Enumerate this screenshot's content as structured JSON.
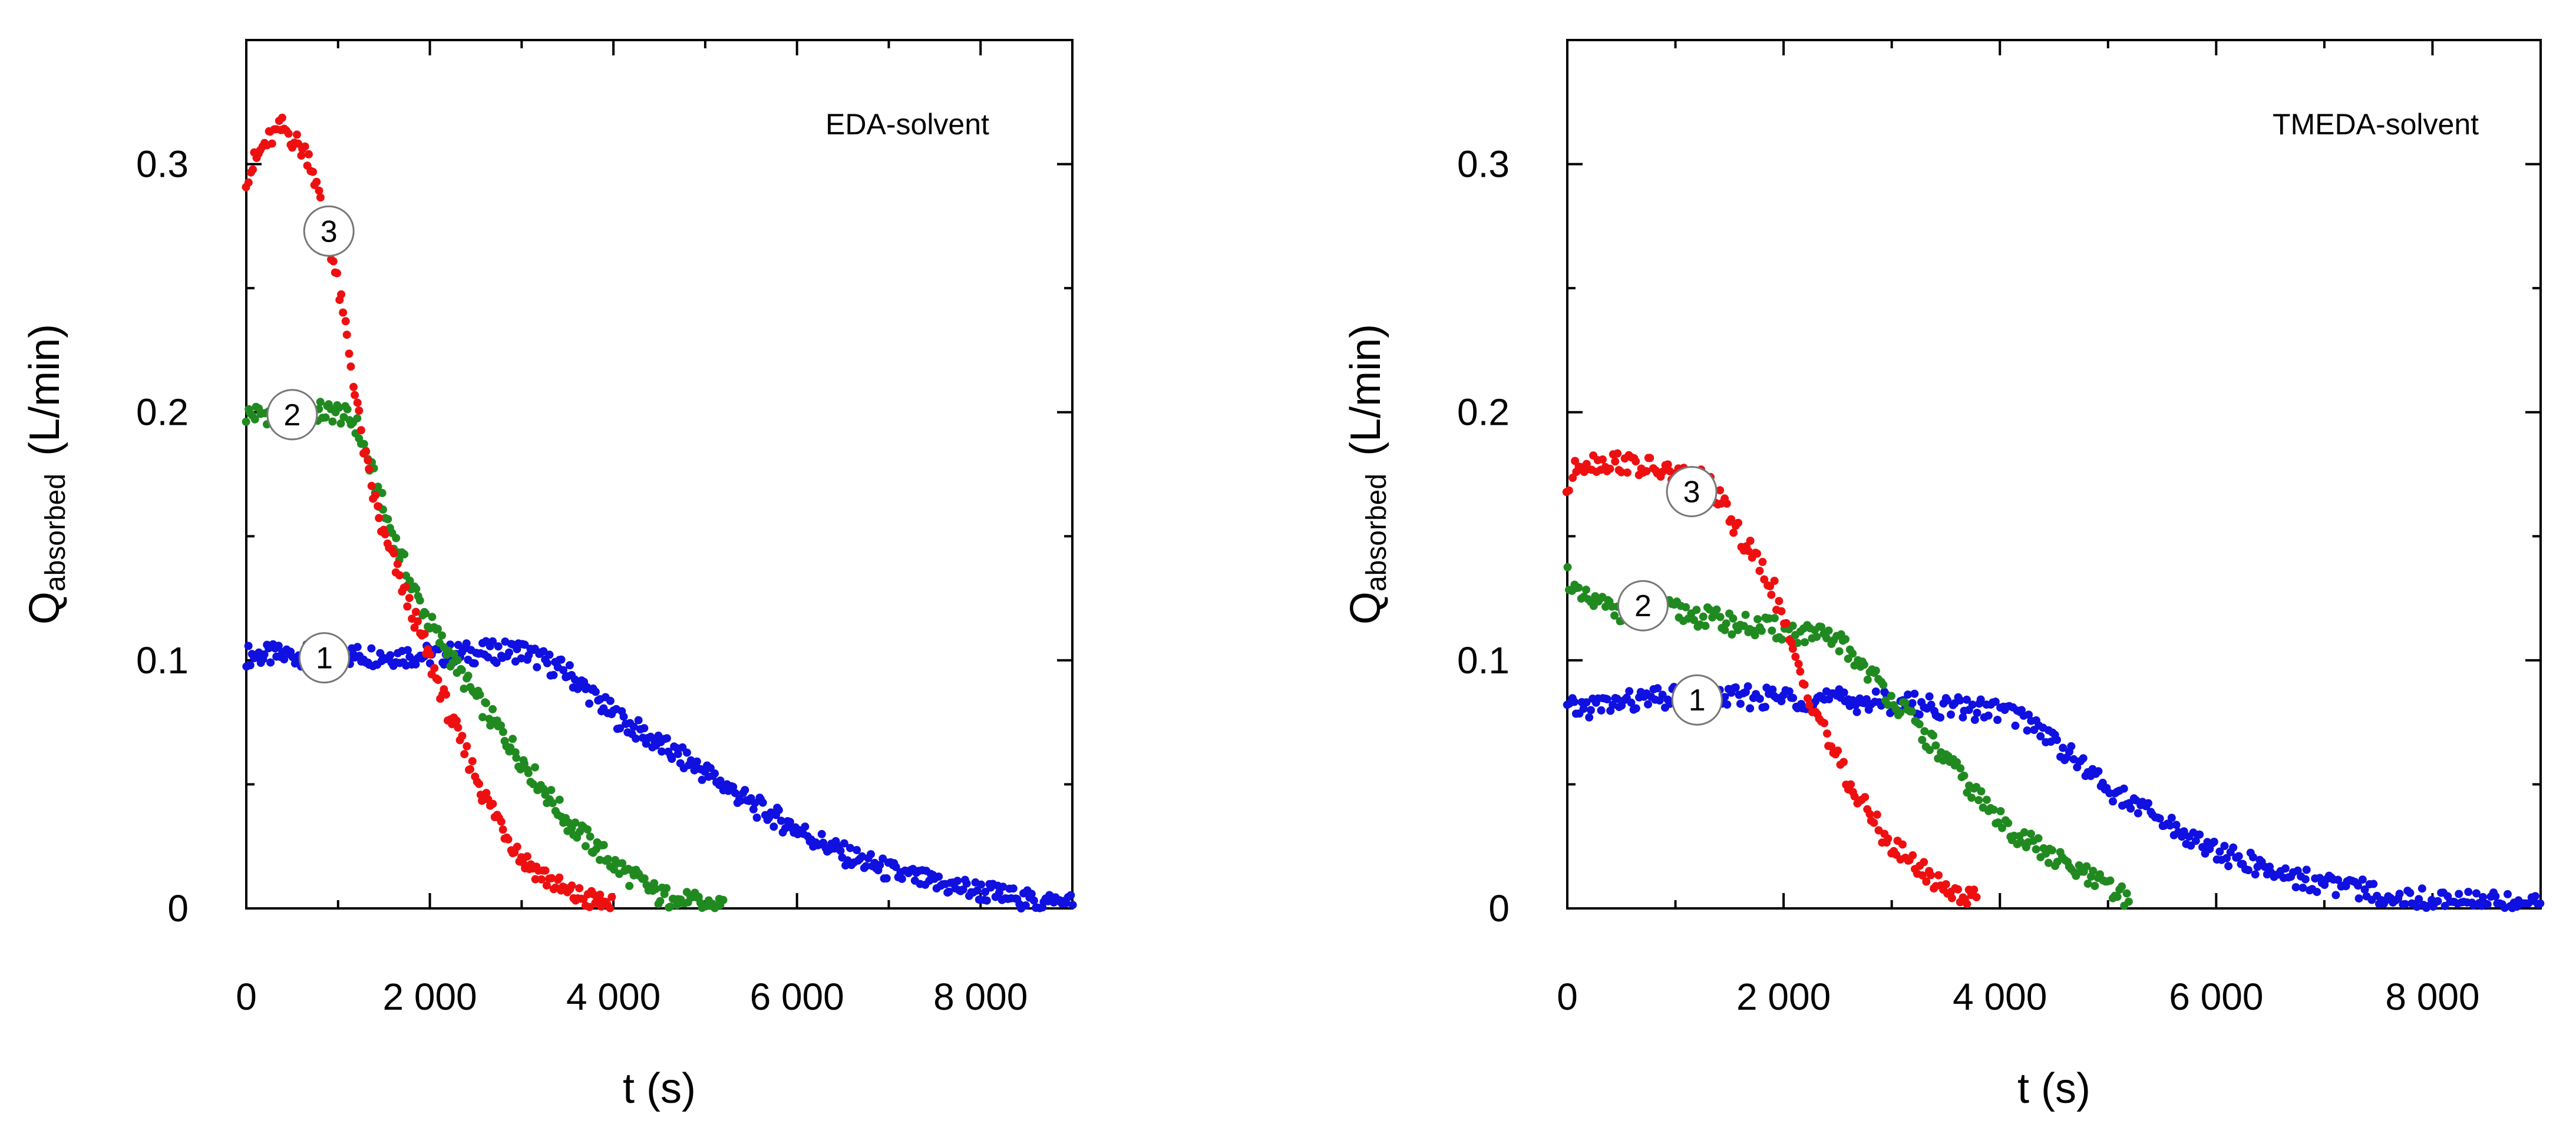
{
  "chart_data": [
    {
      "type": "scatter",
      "title": "EDA-solvent",
      "xlabel": "t  (s)",
      "ylabel_main": "Q",
      "ylabel_sub": "absorbed",
      "ylabel_unit": "(L/min)",
      "xlim": [
        0,
        9000
      ],
      "ylim": [
        0,
        0.35
      ],
      "xticks": [
        0,
        2000,
        4000,
        6000,
        8000
      ],
      "xtick_labels": [
        "0",
        "2 000",
        "4 000",
        "6 000",
        "8 000"
      ],
      "yticks": [
        0,
        0.1,
        0.2,
        0.3
      ],
      "ytick_labels": [
        "0",
        "0.1",
        "0.2",
        "0.3"
      ],
      "series": [
        {
          "name": "1",
          "color": "#1010e0",
          "label_pos": [
            850,
            0.101
          ],
          "x": [
            0,
            1000,
            2000,
            3000,
            3500,
            4000,
            4500,
            5000,
            5500,
            6000,
            6500,
            7000,
            7500,
            8000,
            8500,
            9000
          ],
          "y": [
            0.102,
            0.102,
            0.102,
            0.104,
            0.095,
            0.078,
            0.066,
            0.055,
            0.042,
            0.032,
            0.022,
            0.015,
            0.01,
            0.007,
            0.003,
            0.002
          ]
        },
        {
          "name": "2",
          "color": "#208a20",
          "label_pos": [
            500,
            0.199
          ],
          "x": [
            0,
            500,
            1000,
            1200,
            1500,
            1800,
            2000,
            2500,
            3000,
            3500,
            4000,
            4500,
            5000,
            5200
          ],
          "y": [
            0.199,
            0.2,
            0.2,
            0.195,
            0.16,
            0.13,
            0.115,
            0.085,
            0.06,
            0.035,
            0.018,
            0.005,
            0.001,
            0.001
          ]
        },
        {
          "name": "3",
          "color": "#ee1010",
          "label_pos": [
            900,
            0.273
          ],
          "x": [
            0,
            200,
            400,
            700,
            900,
            1100,
            1300,
            1500,
            1800,
            2000,
            2300,
            2600,
            3000,
            3500,
            4000
          ],
          "y": [
            0.295,
            0.308,
            0.315,
            0.302,
            0.27,
            0.23,
            0.18,
            0.15,
            0.12,
            0.1,
            0.07,
            0.045,
            0.02,
            0.006,
            0.001
          ]
        }
      ]
    },
    {
      "type": "scatter",
      "title": "TMEDA-solvent",
      "xlabel": "t  (s)",
      "ylabel_main": "Q",
      "ylabel_sub": "absorbed",
      "ylabel_unit": "(L/min)",
      "xlim": [
        0,
        9000
      ],
      "ylim": [
        0,
        0.35
      ],
      "xticks": [
        0,
        2000,
        4000,
        6000,
        8000
      ],
      "xtick_labels": [
        "0",
        "2 000",
        "4 000",
        "6 000",
        "8 000"
      ],
      "yticks": [
        0,
        0.1,
        0.2,
        0.3
      ],
      "ytick_labels": [
        "0",
        "0.1",
        "0.2",
        "0.3"
      ],
      "series": [
        {
          "name": "1",
          "color": "#1010e0",
          "label_pos": [
            1200,
            0.084
          ],
          "x": [
            0,
            500,
            1000,
            2000,
            3000,
            3500,
            4000,
            4300,
            4700,
            5000,
            5500,
            6000,
            6500,
            7000,
            7500,
            8000,
            8500,
            9000
          ],
          "y": [
            0.08,
            0.083,
            0.085,
            0.085,
            0.083,
            0.081,
            0.08,
            0.075,
            0.06,
            0.048,
            0.035,
            0.023,
            0.015,
            0.01,
            0.006,
            0.003,
            0.002,
            0.002
          ]
        },
        {
          "name": "2",
          "color": "#208a20",
          "label_pos": [
            700,
            0.122
          ],
          "x": [
            0,
            100,
            500,
            1000,
            1500,
            2000,
            2500,
            2800,
            3000,
            3500,
            4000,
            4500,
            5000,
            5200
          ],
          "y": [
            0.135,
            0.125,
            0.12,
            0.12,
            0.115,
            0.112,
            0.108,
            0.095,
            0.085,
            0.06,
            0.035,
            0.02,
            0.008,
            0.003
          ]
        },
        {
          "name": "3",
          "color": "#ee1010",
          "label_pos": [
            1150,
            0.168
          ],
          "x": [
            0,
            100,
            500,
            1000,
            1300,
            1600,
            1900,
            2100,
            2300,
            2600,
            3000,
            3500,
            3800
          ],
          "y": [
            0.168,
            0.18,
            0.18,
            0.175,
            0.172,
            0.15,
            0.13,
            0.1,
            0.08,
            0.05,
            0.025,
            0.008,
            0.003
          ]
        }
      ]
    }
  ]
}
